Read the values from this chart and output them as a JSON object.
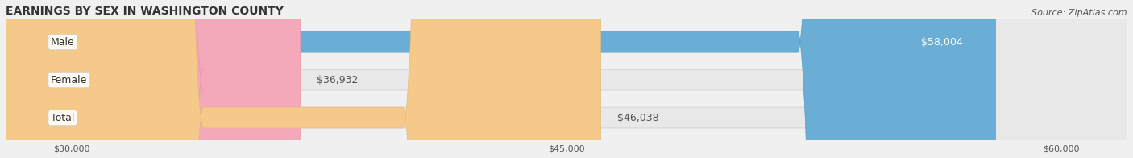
{
  "title": "EARNINGS BY SEX IN WASHINGTON COUNTY",
  "source": "Source: ZipAtlas.com",
  "categories": [
    "Male",
    "Female",
    "Total"
  ],
  "values": [
    58004,
    36932,
    46038
  ],
  "bar_colors": [
    "#6aaed6",
    "#f4a9bb",
    "#f5c98a"
  ],
  "bar_edge_colors": [
    "#5a9ec6",
    "#e899ab",
    "#e5b97a"
  ],
  "label_colors": [
    "#ffffff",
    "#555555",
    "#555555"
  ],
  "value_labels": [
    "$58,004",
    "$36,932",
    "$46,038"
  ],
  "x_min": 28000,
  "x_max": 62000,
  "x_ticks": [
    30000,
    45000,
    60000
  ],
  "x_tick_labels": [
    "$30,000",
    "$45,000",
    "$60,000"
  ],
  "background_color": "#f0f0f0",
  "bar_background_color": "#e8e8e8",
  "title_fontsize": 10,
  "source_fontsize": 8,
  "label_fontsize": 9,
  "value_fontsize": 9,
  "tick_fontsize": 8,
  "bar_height": 0.55
}
